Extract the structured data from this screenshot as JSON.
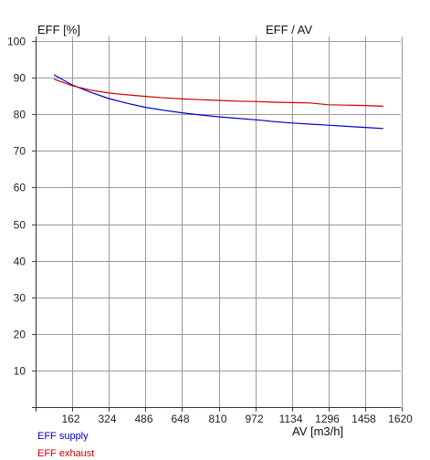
{
  "chart_data": {
    "type": "line",
    "title": "EFF / AV",
    "ylabel": "EFF [%]",
    "xlabel": "AV [m3/h]",
    "xlim": [
      0,
      1620
    ],
    "ylim": [
      0,
      100
    ],
    "xticks": [
      162,
      324,
      486,
      648,
      810,
      972,
      1134,
      1296,
      1458,
      1620
    ],
    "yticks": [
      10,
      20,
      30,
      40,
      50,
      60,
      70,
      80,
      90,
      100
    ],
    "grid": true,
    "legend_position": "bottom-left",
    "series": [
      {
        "name": "EFF supply",
        "color": "#0000cc",
        "x": [
          81,
          162,
          243,
          324,
          405,
          486,
          567,
          648,
          729,
          810,
          891,
          972,
          1053,
          1134,
          1215,
          1296,
          1377,
          1458,
          1539
        ],
        "y": [
          90.8,
          88.0,
          86.0,
          84.3,
          83.0,
          81.9,
          81.1,
          80.4,
          79.8,
          79.3,
          78.9,
          78.5,
          78.0,
          77.6,
          77.3,
          77.0,
          76.7,
          76.4,
          76.1
        ]
      },
      {
        "name": "EFF exhaust",
        "color": "#cc0000",
        "x": [
          81,
          162,
          243,
          324,
          405,
          486,
          567,
          648,
          729,
          810,
          891,
          972,
          1053,
          1134,
          1215,
          1296,
          1377,
          1458,
          1539
        ],
        "y": [
          89.6,
          87.8,
          86.6,
          85.8,
          85.3,
          84.9,
          84.5,
          84.2,
          84.0,
          83.8,
          83.6,
          83.5,
          83.3,
          83.2,
          83.1,
          82.6,
          82.5,
          82.4,
          82.2
        ]
      }
    ]
  }
}
